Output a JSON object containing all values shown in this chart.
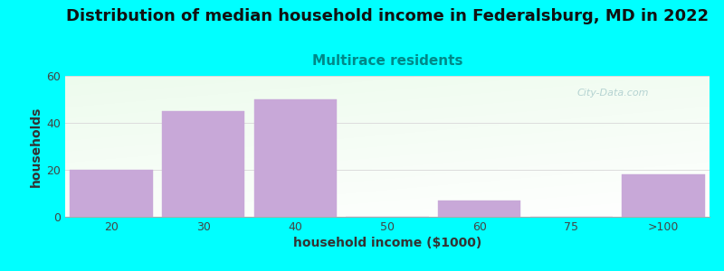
{
  "title": "Distribution of median household income in Federalsburg, MD in 2022",
  "subtitle": "Multirace residents",
  "xlabel": "household income ($1000)",
  "ylabel": "households",
  "background_color": "#00FFFF",
  "bar_color": "#c8a8d8",
  "bar_edge_color": "#c8a8d8",
  "categories": [
    "20",
    "30",
    "40",
    "50",
    "60",
    "75",
    ">100"
  ],
  "values": [
    20,
    45,
    50,
    0,
    7,
    0,
    18
  ],
  "ylim": [
    0,
    60
  ],
  "yticks": [
    0,
    20,
    40,
    60
  ],
  "title_fontsize": 13,
  "subtitle_fontsize": 11,
  "subtitle_color": "#008888",
  "axis_label_fontsize": 10,
  "tick_fontsize": 9,
  "watermark_text": "City-Data.com",
  "bar_width": 0.9
}
